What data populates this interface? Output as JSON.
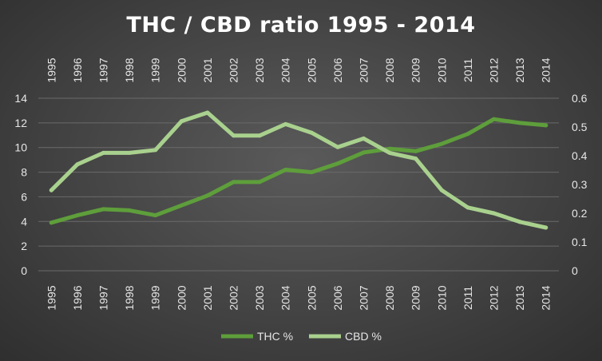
{
  "chart_data": {
    "type": "line",
    "title": "THC / CBD ratio 1995 - 2014",
    "xlabel": "",
    "ylabel": "",
    "x": [
      "1995",
      "1996",
      "1997",
      "1998",
      "1999",
      "2000",
      "2001",
      "2002",
      "2003",
      "2004",
      "2005",
      "2006",
      "2007",
      "2008",
      "2009",
      "2010",
      "2011",
      "2012",
      "2013",
      "2014"
    ],
    "ylim": [
      0,
      14
    ],
    "y2lim": [
      0,
      0.6
    ],
    "yticks": [
      0,
      2,
      4,
      6,
      8,
      10,
      12,
      14
    ],
    "y2ticks": [
      "0",
      "0.1",
      "0.2",
      "0.3",
      "0.4",
      "0.5",
      "0.6"
    ],
    "grid": true,
    "legend_position": "bottom",
    "series": [
      {
        "name": "THC %",
        "axis": "left",
        "color": "#5e9e3b",
        "values": [
          3.9,
          4.5,
          5.0,
          4.9,
          4.5,
          5.3,
          6.1,
          7.2,
          7.2,
          8.2,
          8.0,
          8.7,
          9.6,
          9.9,
          9.7,
          10.3,
          11.1,
          12.3,
          12.0,
          11.8
        ]
      },
      {
        "name": "CBD %",
        "axis": "right",
        "color": "#a9d18e",
        "values": [
          0.28,
          0.37,
          0.41,
          0.41,
          0.42,
          0.52,
          0.55,
          0.47,
          0.47,
          0.51,
          0.48,
          0.43,
          0.46,
          0.41,
          0.39,
          0.28,
          0.22,
          0.2,
          0.17,
          0.15
        ]
      }
    ]
  }
}
